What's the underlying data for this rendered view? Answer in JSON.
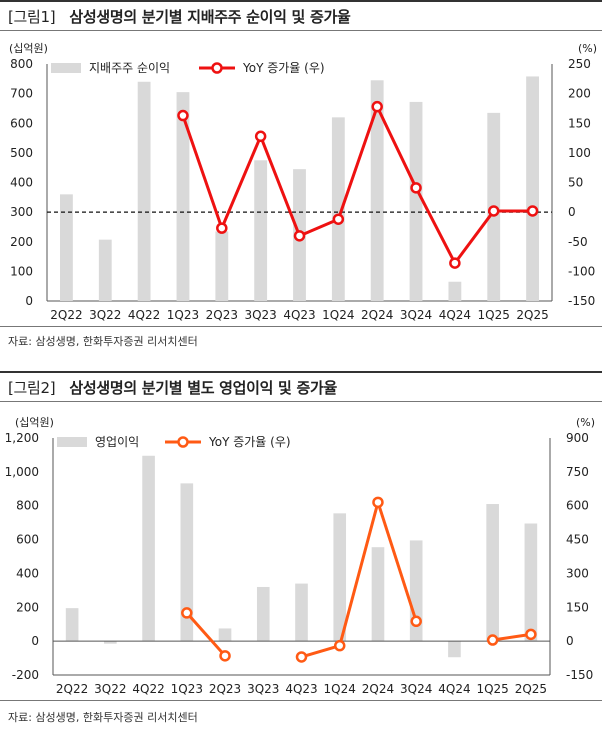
{
  "charts": [
    {
      "tag": "[그림1]",
      "title": "삼성생명의 분기별 지배주주 순이익 및 증가율",
      "source": "자료: 삼성생명, 한화투자증권 리서치센터",
      "chart_data": {
        "type": "bar+line",
        "categories": [
          "2Q22",
          "3Q22",
          "4Q22",
          "1Q23",
          "2Q23",
          "3Q23",
          "4Q23",
          "1Q24",
          "2Q24",
          "3Q24",
          "4Q24",
          "1Q25",
          "2Q25"
        ],
        "series": [
          {
            "name": "지배주주 순이익",
            "kind": "bar",
            "axis": "left",
            "color": "#d9d9d9",
            "values": [
              360,
              207,
              740,
              705,
              235,
              475,
              445,
              620,
              745,
              672,
              65,
              635,
              758
            ]
          },
          {
            "name": "YoY 증가율 (우)",
            "kind": "line",
            "axis": "right",
            "color": "#ee1111",
            "values": [
              null,
              null,
              null,
              163,
              -27,
              128,
              -40,
              -12,
              178,
              41,
              -86,
              2,
              2
            ]
          }
        ],
        "left_unit": "(십억원)",
        "right_unit": "(%)",
        "ylim_left": [
          0,
          800
        ],
        "yticks_left": [
          0,
          100,
          200,
          300,
          400,
          500,
          600,
          700,
          800
        ],
        "ytick_labels_left": [
          "0",
          "100",
          "200",
          "300",
          "400",
          "500",
          "600",
          "700",
          "800"
        ],
        "ylim_right": [
          -150,
          250
        ],
        "yticks_right": [
          -150,
          -100,
          -50,
          0,
          50,
          100,
          150,
          200,
          250
        ],
        "ytick_labels_right": [
          "-150",
          "-100",
          "-50",
          "0",
          "50",
          "100",
          "150",
          "200",
          "250"
        ],
        "zero_line": "dashed",
        "legend": "top-center"
      }
    },
    {
      "tag": "[그림2]",
      "title": "삼성생명의 분기별 별도 영업이익 및 증가율",
      "source": "자료: 삼성생명, 한화투자증권 리서치센터",
      "chart_data": {
        "type": "bar+line",
        "categories": [
          "2Q22",
          "3Q22",
          "4Q22",
          "1Q23",
          "2Q23",
          "3Q23",
          "4Q23",
          "1Q24",
          "2Q24",
          "3Q24",
          "4Q24",
          "1Q25",
          "2Q25"
        ],
        "series": [
          {
            "name": "영업이익",
            "kind": "bar",
            "axis": "left",
            "color": "#d9d9d9",
            "values": [
              195,
              -15,
              1095,
              932,
              75,
              320,
              340,
              755,
              555,
              595,
              -95,
              810,
              695
            ]
          },
          {
            "name": "YoY 증가율 (우)",
            "kind": "line",
            "axis": "right",
            "color": "#ff5a14",
            "values": [
              null,
              null,
              null,
              125,
              -65,
              null,
              -70,
              -20,
              615,
              88,
              null,
              5,
              30
            ]
          }
        ],
        "left_unit": "(십억원)",
        "right_unit": "(%)",
        "ylim_left": [
          -200,
          1200
        ],
        "yticks_left": [
          -200,
          0,
          200,
          400,
          600,
          800,
          1000,
          1200
        ],
        "ytick_labels_left": [
          "-200",
          "0",
          "200",
          "400",
          "600",
          "800",
          "1,000",
          "1,200"
        ],
        "ylim_right": [
          -150,
          900
        ],
        "yticks_right": [
          -150,
          0,
          150,
          300,
          450,
          600,
          750,
          900
        ],
        "ytick_labels_right": [
          "-150",
          "0",
          "150",
          "300",
          "450",
          "600",
          "750",
          "900"
        ],
        "zero_line": "solid",
        "legend": "top-center"
      }
    }
  ]
}
